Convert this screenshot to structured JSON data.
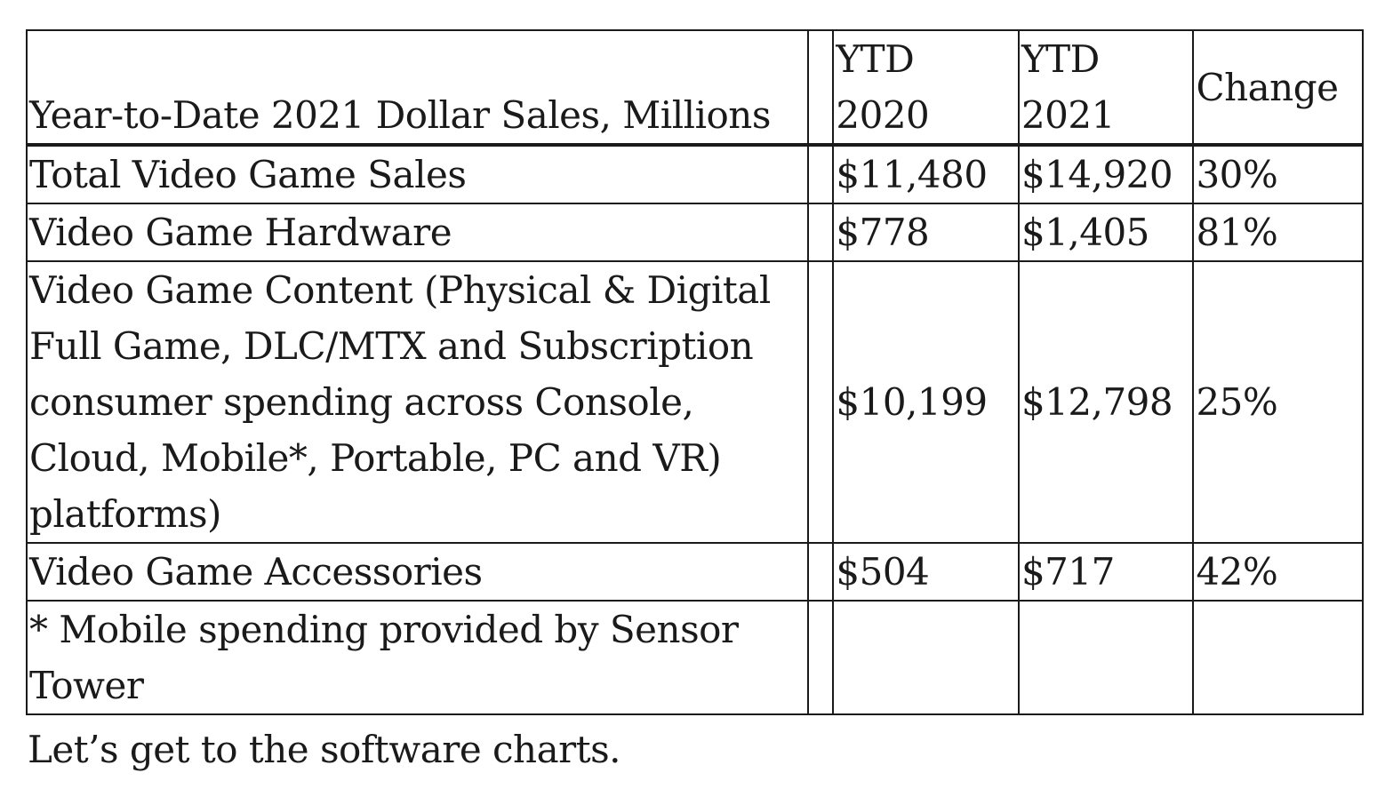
{
  "table": {
    "header": {
      "label": "Year-to-Date 2021 Dollar Sales, Millions",
      "ytd2020": "YTD 2020",
      "ytd2021": "YTD 2021",
      "change": "Change"
    },
    "rows": [
      {
        "label": "Total Video Game Sales",
        "ytd2020": "$11,480",
        "ytd2021": "$14,920",
        "change": "30%"
      },
      {
        "label": "Video Game Hardware",
        "ytd2020": "$778",
        "ytd2021": "$1,405",
        "change": "81%"
      },
      {
        "label": "Video Game Content (Physical & Digital Full Game, DLC/MTX and Subscription consumer spending across Console, Cloud, Mobile*, Portable, PC and VR) platforms)",
        "ytd2020": "$10,199",
        "ytd2021": "$12,798",
        "change": "25%"
      },
      {
        "label": "Video Game Accessories",
        "ytd2020": "$504",
        "ytd2021": "$717",
        "change": "42%"
      }
    ],
    "footnote": "* Mobile spending provided by Sensor Tower"
  },
  "closing_text": "Let’s get to the software charts."
}
